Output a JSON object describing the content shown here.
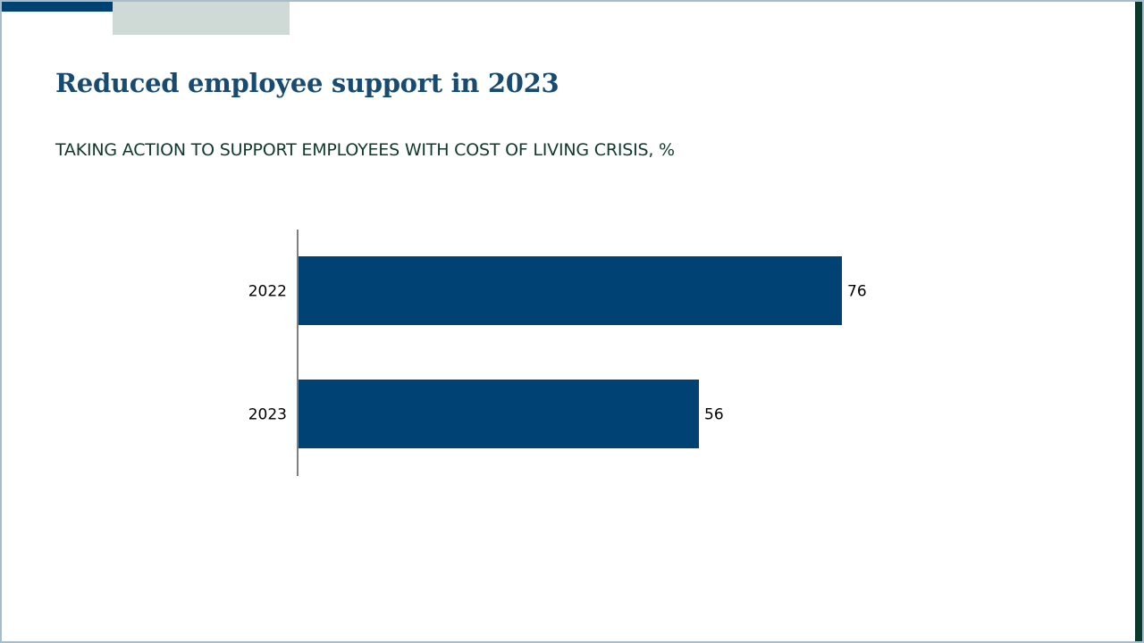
{
  "slide": {
    "title": "Reduced employee support in 2023",
    "subtitle": "TAKING ACTION TO SUPPORT EMPLOYEES WITH COST OF LIVING CRISIS, %"
  },
  "colors": {
    "bar": "#004274",
    "title": "#174b72",
    "subtitle": "#0f3b2c",
    "accent_dark": "#004274",
    "accent_light": "#cfdad6"
  },
  "chart_data": {
    "type": "bar",
    "orientation": "horizontal",
    "categories": [
      "2022",
      "2023"
    ],
    "values": [
      76,
      56
    ],
    "data_labels": [
      "76",
      "56"
    ],
    "xlim": [
      0,
      100
    ],
    "grid": false,
    "legend": "none"
  }
}
